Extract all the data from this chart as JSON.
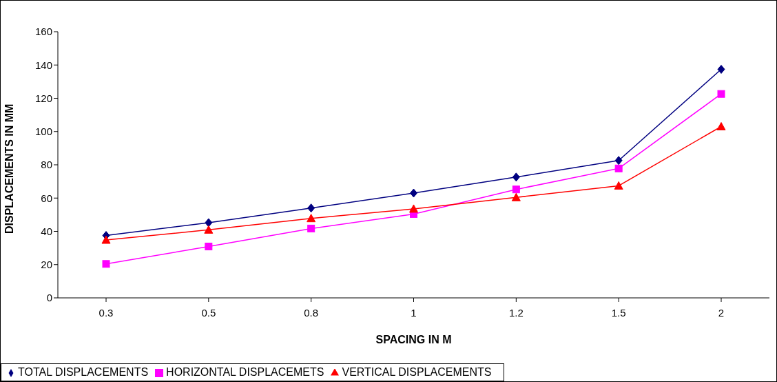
{
  "chart_data": {
    "type": "line",
    "xlabel": "SPACING IN M",
    "ylabel": "DISPLACEMENTS IN MM",
    "categories": [
      "0.3",
      "0.5",
      "0.8",
      "1",
      "1.2",
      "1.5",
      "2"
    ],
    "ylim": [
      0,
      160
    ],
    "yticks": [
      0,
      20,
      40,
      60,
      80,
      100,
      120,
      140,
      160
    ],
    "grid": false,
    "legend": "bottom",
    "series": [
      {
        "name": "TOTAL DISPLACEMENTS",
        "color": "#000080",
        "marker": "diamond",
        "values": [
          37.5,
          45.2,
          54,
          63,
          72.6,
          82.6,
          137.4
        ]
      },
      {
        "name": "HORIZONTAL DISPLACEMETS",
        "color": "#ff00ff",
        "marker": "square",
        "values": [
          20.4,
          30.9,
          41.7,
          50.4,
          65.2,
          77.8,
          122.6
        ]
      },
      {
        "name": "VERTICAL DISPLACEMENTS",
        "color": "#ff0000",
        "marker": "triangle",
        "values": [
          34.8,
          40.9,
          47.8,
          53.5,
          60.4,
          67.4,
          103
        ]
      }
    ]
  }
}
